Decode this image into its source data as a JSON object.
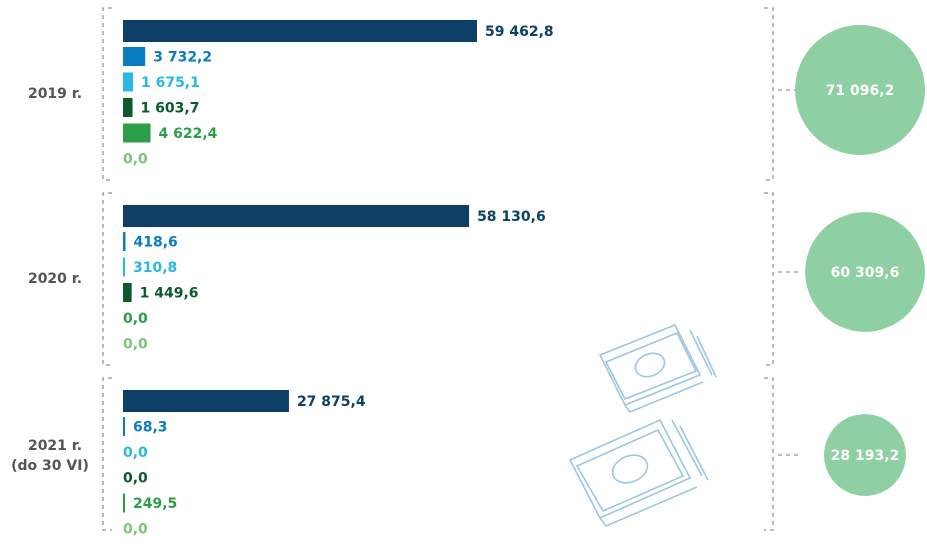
{
  "chart_data": {
    "type": "bar",
    "categories": [
      "2019 r.",
      "2020 r.",
      "2021 r."
    ],
    "category_sublabels": [
      null,
      null,
      "(do 30 VI)"
    ],
    "series": [
      {
        "color": "#0e3f66",
        "values": [
          59462.8,
          58130.6,
          27875.4
        ],
        "value_labels": [
          "59 462,8",
          "58 130,6",
          "27 875,4"
        ]
      },
      {
        "color": "#0a7cc2",
        "values": [
          3732.2,
          418.6,
          68.3
        ],
        "value_labels": [
          "3 732,2",
          "418,6",
          "68,3"
        ]
      },
      {
        "color": "#2ab7e6",
        "values": [
          1675.1,
          310.8,
          0.0
        ],
        "value_labels": [
          "1 675,1",
          "310,8",
          "0,0"
        ]
      },
      {
        "color": "#0b5a2e",
        "values": [
          1603.7,
          1449.6,
          0.0
        ],
        "value_labels": [
          "1 603,7",
          "1 449,6",
          "0,0"
        ]
      },
      {
        "color": "#2c9e4a",
        "values": [
          4622.4,
          0.0,
          249.5
        ],
        "value_labels": [
          "4 622,4",
          "0,0",
          "249,5"
        ]
      },
      {
        "color": "#7dc577",
        "values": [
          0.0,
          0.0,
          0.0
        ],
        "value_labels": [
          "0,0",
          "0,0",
          "0,0"
        ]
      }
    ],
    "totals": {
      "color": "#8ecfa3",
      "values": [
        71096.2,
        60309.6,
        28193.2
      ],
      "value_labels": [
        "71 096,2",
        "60 309,6",
        "28 193,2"
      ]
    }
  }
}
